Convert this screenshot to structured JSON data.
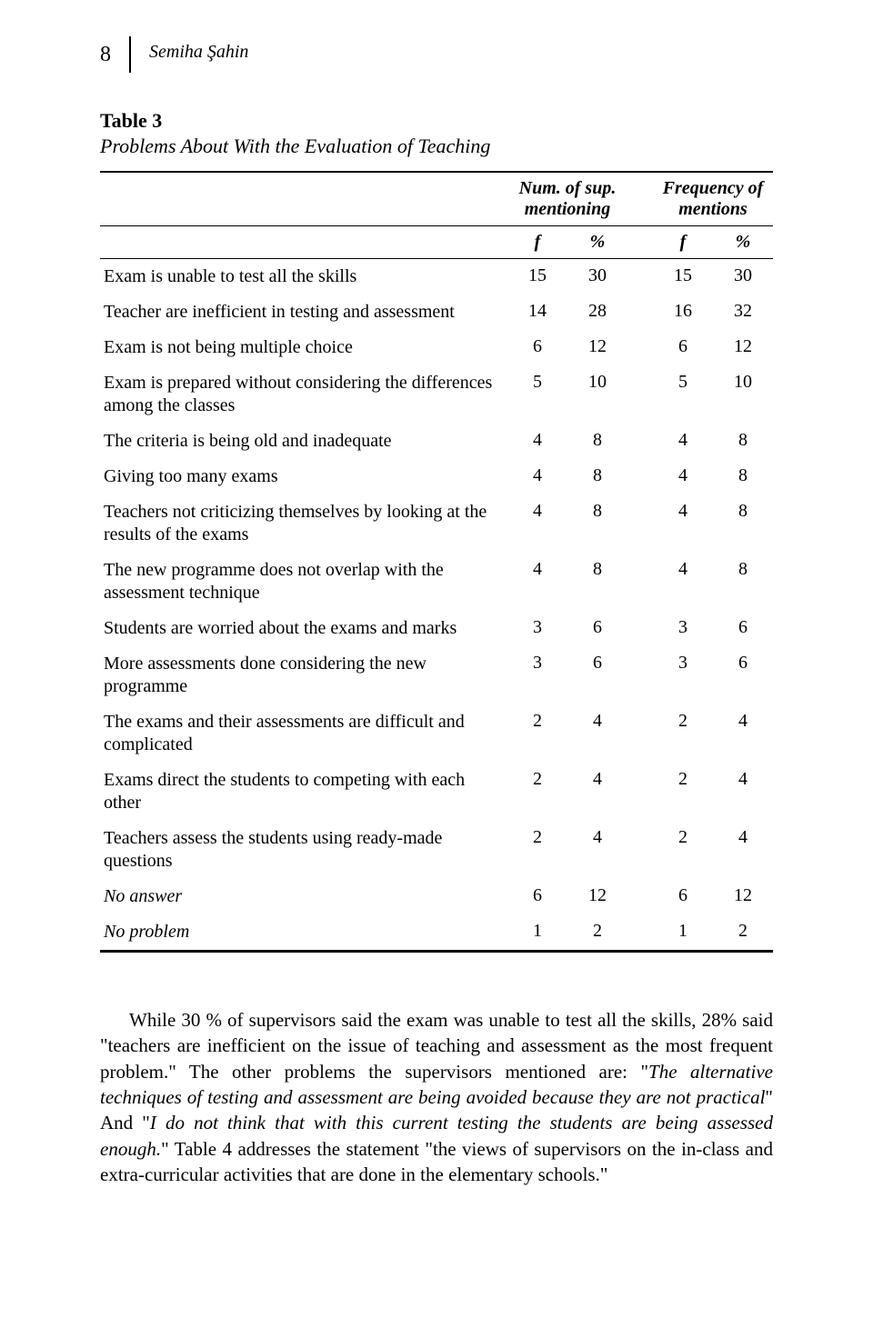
{
  "page_number": "8",
  "author": "Semiha Şahin",
  "table": {
    "label": "Table 3",
    "caption": "Problems About With the Evaluation of Teaching",
    "group_headers": [
      "Num. of sup. mentioning",
      "Frequency of mentions"
    ],
    "sub_headers": [
      "f",
      "%",
      "f",
      "%"
    ],
    "rows": [
      {
        "label": "Exam is unable to test all the skills",
        "vals": [
          "15",
          "30",
          "15",
          "30"
        ],
        "italic": false
      },
      {
        "label": "Teacher are inefficient in testing and assessment",
        "vals": [
          "14",
          "28",
          "16",
          "32"
        ],
        "italic": false
      },
      {
        "label": "Exam is not being multiple choice",
        "vals": [
          "6",
          "12",
          "6",
          "12"
        ],
        "italic": false
      },
      {
        "label": "Exam is prepared without considering the differences among the classes",
        "vals": [
          "5",
          "10",
          "5",
          "10"
        ],
        "italic": false
      },
      {
        "label": "The criteria is being old and inadequate",
        "vals": [
          "4",
          "8",
          "4",
          "8"
        ],
        "italic": false
      },
      {
        "label": "Giving too many exams",
        "vals": [
          "4",
          "8",
          "4",
          "8"
        ],
        "italic": false
      },
      {
        "label": "Teachers not criticizing themselves by looking at the results of the exams",
        "vals": [
          "4",
          "8",
          "4",
          "8"
        ],
        "italic": false
      },
      {
        "label": "The new programme does not overlap with the assessment technique",
        "vals": [
          "4",
          "8",
          "4",
          "8"
        ],
        "italic": false
      },
      {
        "label": "Students are worried about the exams and marks",
        "vals": [
          "3",
          "6",
          "3",
          "6"
        ],
        "italic": false
      },
      {
        "label": "More assessments done considering the new programme",
        "vals": [
          "3",
          "6",
          "3",
          "6"
        ],
        "italic": false
      },
      {
        "label": "The exams and their assessments are difficult and complicated",
        "vals": [
          "2",
          "4",
          "2",
          "4"
        ],
        "italic": false
      },
      {
        "label": "Exams direct the students to competing with each other",
        "vals": [
          "2",
          "4",
          "2",
          "4"
        ],
        "italic": false
      },
      {
        "label": "Teachers assess the students using ready-made questions",
        "vals": [
          "2",
          "4",
          "2",
          "4"
        ],
        "italic": false
      },
      {
        "label": "No answer",
        "vals": [
          "6",
          "12",
          "6",
          "12"
        ],
        "italic": true
      },
      {
        "label": "No problem",
        "vals": [
          "1",
          "2",
          "1",
          "2"
        ],
        "italic": true
      }
    ]
  },
  "paragraph": {
    "t1": "While 30 % of supervisors said the exam was unable to test all the skills, 28% said \"teachers are inefficient on the issue of teaching and assessment as the most frequent problem.\" The other problems the supervisors mentioned are: \"",
    "i1": "The alternative techniques of testing and assessment are being avoided because they are not practical",
    "t2": "\" And \"",
    "i2": "I do not think that with this current testing the students are being assessed enough.",
    "t3": "\" Table 4 addresses the statement \"the views of supervisors on the in-class and extra-curricular activities that are done in the elementary schools.\""
  }
}
